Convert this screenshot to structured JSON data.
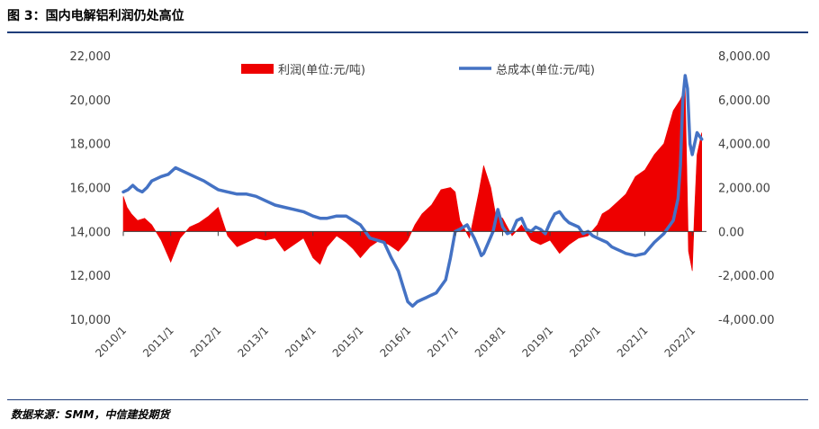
{
  "figure": {
    "title": "图 3：国内电解铝利润仍处高位",
    "source": "数据来源：SMM，中信建投期货"
  },
  "colors": {
    "profit": "#ee0000",
    "cost": "#4472c4",
    "rule": "#1f3d7a"
  },
  "chart_data": {
    "type": "area+line",
    "x_tick_labels": [
      "2010/1",
      "2011/1",
      "2012/1",
      "2013/1",
      "2014/1",
      "2015/1",
      "2016/1",
      "2017/1",
      "2018/1",
      "2019/1",
      "2020/1",
      "2021/1",
      "2022/1"
    ],
    "left_axis": {
      "min": 10000,
      "max": 22000,
      "ticks": [
        "10,000",
        "12,000",
        "14,000",
        "16,000",
        "18,000",
        "20,000",
        "22,000"
      ]
    },
    "right_axis": {
      "min": -4000,
      "max": 8000,
      "ticks": [
        "-4,000.00",
        "-2,000.00",
        "0.00",
        "2,000.00",
        "4,000.00",
        "6,000.00",
        "8,000.00"
      ]
    },
    "legend_position": "top",
    "series": [
      {
        "name": "利润(单位:元/吨)",
        "chart_type": "area",
        "axis": "right",
        "x": [
          2010.0,
          2010.08,
          2010.17,
          2010.3,
          2010.45,
          2010.6,
          2010.8,
          2011.0,
          2011.2,
          2011.4,
          2011.6,
          2011.8,
          2012.0,
          2012.2,
          2012.4,
          2012.6,
          2012.8,
          2013.0,
          2013.2,
          2013.4,
          2013.6,
          2013.8,
          2014.0,
          2014.15,
          2014.3,
          2014.5,
          2014.7,
          2014.85,
          2015.0,
          2015.2,
          2015.4,
          2015.6,
          2015.8,
          2016.0,
          2016.15,
          2016.3,
          2016.5,
          2016.7,
          2016.9,
          2017.0,
          2017.1,
          2017.3,
          2017.5,
          2017.6,
          2017.75,
          2017.85,
          2018.0,
          2018.2,
          2018.4,
          2018.6,
          2018.8,
          2019.0,
          2019.2,
          2019.4,
          2019.6,
          2019.8,
          2020.0,
          2020.1,
          2020.25,
          2020.4,
          2020.6,
          2020.8,
          2021.0,
          2021.2,
          2021.4,
          2021.6,
          2021.75,
          2021.85,
          2021.92,
          2022.0,
          2022.05,
          2022.1,
          2022.2
        ],
        "values": [
          1600,
          1100,
          800,
          500,
          600,
          300,
          -400,
          -1400,
          -300,
          200,
          400,
          700,
          1100,
          -200,
          -700,
          -500,
          -300,
          -400,
          -300,
          -900,
          -600,
          -300,
          -1200,
          -1500,
          -700,
          -200,
          -500,
          -800,
          -1200,
          -700,
          -400,
          -600,
          -900,
          -400,
          300,
          800,
          1200,
          1900,
          2000,
          1800,
          500,
          -300,
          1800,
          3000,
          2000,
          800,
          600,
          -200,
          300,
          -400,
          -600,
          -400,
          -1000,
          -600,
          -300,
          -200,
          300,
          800,
          1000,
          1300,
          1700,
          2500,
          2800,
          3500,
          4000,
          5500,
          6000,
          6500,
          -900,
          -1800,
          1000,
          3500,
          4500
        ]
      },
      {
        "name": "总成本(单位:元/吨)",
        "chart_type": "line",
        "axis": "left",
        "x": [
          2010.0,
          2010.1,
          2010.2,
          2010.3,
          2010.4,
          2010.5,
          2010.6,
          2010.8,
          2010.95,
          2011.1,
          2011.3,
          2011.5,
          2011.7,
          2011.85,
          2012.0,
          2012.2,
          2012.4,
          2012.6,
          2012.8,
          2013.0,
          2013.2,
          2013.4,
          2013.6,
          2013.8,
          2014.0,
          2014.15,
          2014.3,
          2014.5,
          2014.7,
          2014.85,
          2015.0,
          2015.1,
          2015.2,
          2015.35,
          2015.5,
          2015.65,
          2015.8,
          2015.9,
          2016.0,
          2016.1,
          2016.2,
          2016.3,
          2016.4,
          2016.5,
          2016.6,
          2016.7,
          2016.8,
          2016.9,
          2017.0,
          2017.1,
          2017.25,
          2017.4,
          2017.5,
          2017.55,
          2017.6,
          2017.7,
          2017.8,
          2017.9,
          2018.0,
          2018.1,
          2018.2,
          2018.3,
          2018.4,
          2018.5,
          2018.6,
          2018.7,
          2018.8,
          2018.9,
          2019.0,
          2019.1,
          2019.2,
          2019.3,
          2019.4,
          2019.5,
          2019.6,
          2019.7,
          2019.8,
          2019.9,
          2020.0,
          2020.1,
          2020.2,
          2020.3,
          2020.4,
          2020.5,
          2020.6,
          2020.8,
          2021.0,
          2021.2,
          2021.4,
          2021.6,
          2021.7,
          2021.75,
          2021.8,
          2021.85,
          2021.9,
          2021.95,
          2022.0,
          2022.05,
          2022.1,
          2022.2
        ],
        "values": [
          15800,
          15900,
          16100,
          15900,
          15800,
          16000,
          16300,
          16500,
          16600,
          16900,
          16700,
          16500,
          16300,
          16100,
          15900,
          15800,
          15700,
          15700,
          15600,
          15400,
          15200,
          15100,
          15000,
          14900,
          14700,
          14600,
          14600,
          14700,
          14700,
          14500,
          14300,
          14000,
          13700,
          13600,
          13500,
          12800,
          12200,
          11500,
          10800,
          10600,
          10800,
          10900,
          11000,
          11100,
          11200,
          11500,
          11800,
          12800,
          14000,
          14100,
          14300,
          13700,
          13200,
          12900,
          13000,
          13500,
          14000,
          15000,
          14200,
          13900,
          14000,
          14500,
          14600,
          14100,
          14000,
          14200,
          14100,
          13900,
          14400,
          14800,
          14900,
          14600,
          14400,
          14300,
          14200,
          13900,
          14000,
          13800,
          13700,
          13600,
          13500,
          13300,
          13200,
          13100,
          13000,
          12900,
          13000,
          13500,
          13900,
          14500,
          15500,
          17000,
          20000,
          21100,
          20500,
          18000,
          17500,
          18000,
          18500,
          18200
        ]
      }
    ]
  }
}
